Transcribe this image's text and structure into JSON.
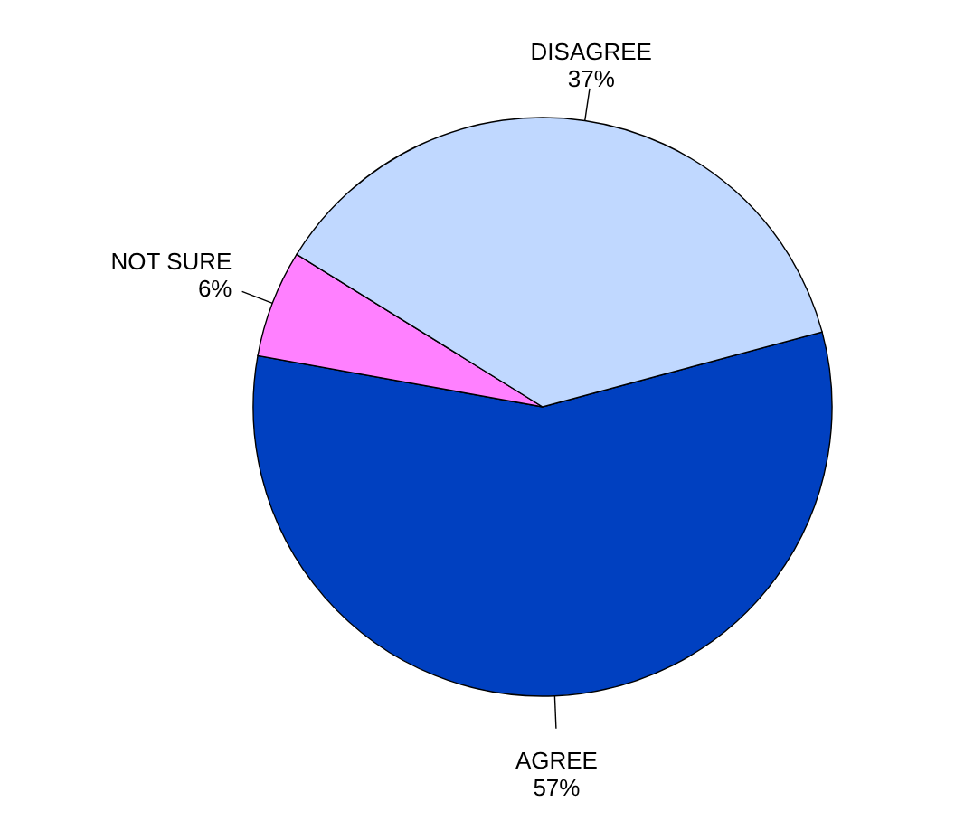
{
  "chart_data": {
    "type": "pie",
    "categories": [
      "AGREE",
      "NOT SURE",
      "DISAGREE"
    ],
    "values": [
      57,
      6,
      37
    ],
    "colors": [
      "#0040c0",
      "#ff80ff",
      "#c0d8ff"
    ],
    "value_labels": [
      "57%",
      "6%",
      "37%"
    ]
  }
}
